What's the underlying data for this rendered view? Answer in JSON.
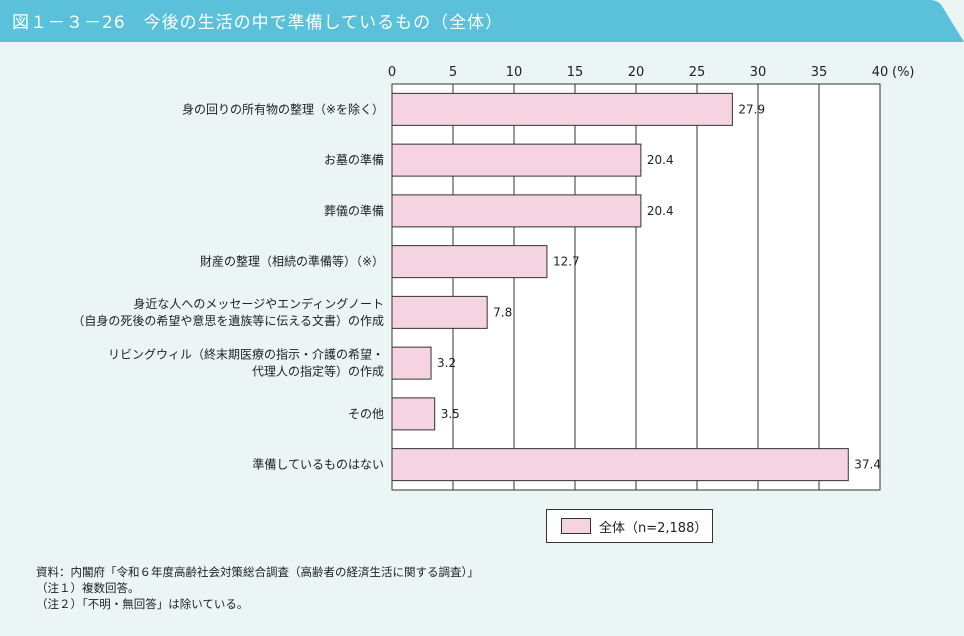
{
  "header": {
    "title": "図１－３－26　今後の生活の中で準備しているもの（全体）",
    "color": "#5bc1da"
  },
  "chart_data": {
    "type": "bar",
    "orientation": "horizontal",
    "categories": [
      [
        "身の回りの所有物の整理（※を除く）"
      ],
      [
        "お墓の準備"
      ],
      [
        "葬儀の準備"
      ],
      [
        "財産の整理（相続の準備等）（※）"
      ],
      [
        "身近な人へのメッセージやエンディングノート",
        "（自身の死後の希望や意思を遺族等に伝える文書）の作成"
      ],
      [
        "リビングウィル（終末期医療の指示・介護の希望・",
        "代理人の指定等）の作成"
      ],
      [
        "その他"
      ],
      [
        "準備しているものはない"
      ]
    ],
    "series": [
      {
        "name": "全体（n=2,188）",
        "values": [
          27.9,
          20.4,
          20.4,
          12.7,
          7.8,
          3.2,
          3.5,
          37.4
        ],
        "labels": [
          "27.9",
          "20.4",
          "20.4",
          "12.7",
          "7.8",
          "3.2",
          "3.5",
          "37.4"
        ],
        "color": "#f6d3e1"
      }
    ],
    "xlim": [
      0,
      40
    ],
    "xticks": [
      "0",
      "5",
      "10",
      "15",
      "20",
      "25",
      "30",
      "35",
      "40"
    ],
    "unit": "(%)",
    "grid": true,
    "legend": "bottom-right"
  },
  "legend": {
    "label": "全体（n=2,188）"
  },
  "notes": [
    "資料：内閣府「令和６年度高齢社会対策総合調査（高齢者の経済生活に関する調査）」",
    "（注１）複数回答。",
    "（注２）「不明・無回答」は除いている。"
  ]
}
